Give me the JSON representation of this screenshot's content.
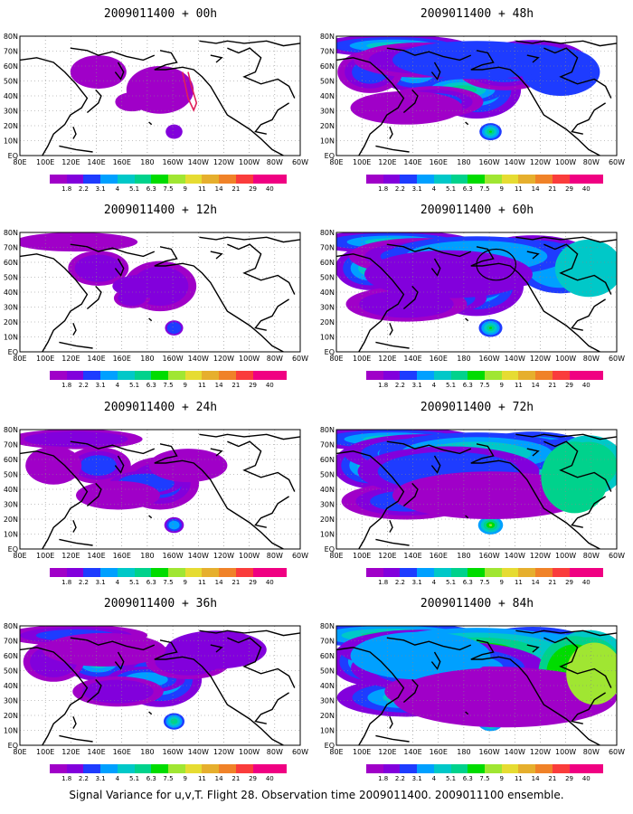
{
  "caption": "Signal Variance for u,v,T. Flight 28. Observation time 2009011400. 2009011100 ensemble.",
  "lon_labels": [
    "80E",
    "100E",
    "120E",
    "140E",
    "160E",
    "180",
    "160W",
    "140W",
    "120W",
    "100W",
    "80W",
    "60W"
  ],
  "lat_labels": [
    "80N",
    "70N",
    "60N",
    "50N",
    "40N",
    "30N",
    "20N",
    "10N",
    "EQ"
  ],
  "colorbar": {
    "labels": [
      "1.8",
      "2.2",
      "3.1",
      "4",
      "5.1",
      "6.3",
      "7.5",
      "9",
      "11",
      "14",
      "21",
      "29",
      "40"
    ],
    "colors": [
      "#a000c8",
      "#8200dc",
      "#1e3cff",
      "#00a0ff",
      "#00c8c8",
      "#00d28c",
      "#00dc00",
      "#a0e632",
      "#e6dc32",
      "#e6af2d",
      "#f08228",
      "#fa3c3c",
      "#f00082"
    ]
  },
  "panels": [
    {
      "title": "2009011400 + 00h",
      "level": 0
    },
    {
      "title": "2009011400 + 48h",
      "level": 4
    },
    {
      "title": "2009011400 + 12h",
      "level": 1
    },
    {
      "title": "2009011400 + 60h",
      "level": 5
    },
    {
      "title": "2009011400 + 24h",
      "level": 2
    },
    {
      "title": "2009011400 + 72h",
      "level": 6
    },
    {
      "title": "2009011400 + 36h",
      "level": 3
    },
    {
      "title": "2009011400 + 84h",
      "level": 7
    }
  ]
}
